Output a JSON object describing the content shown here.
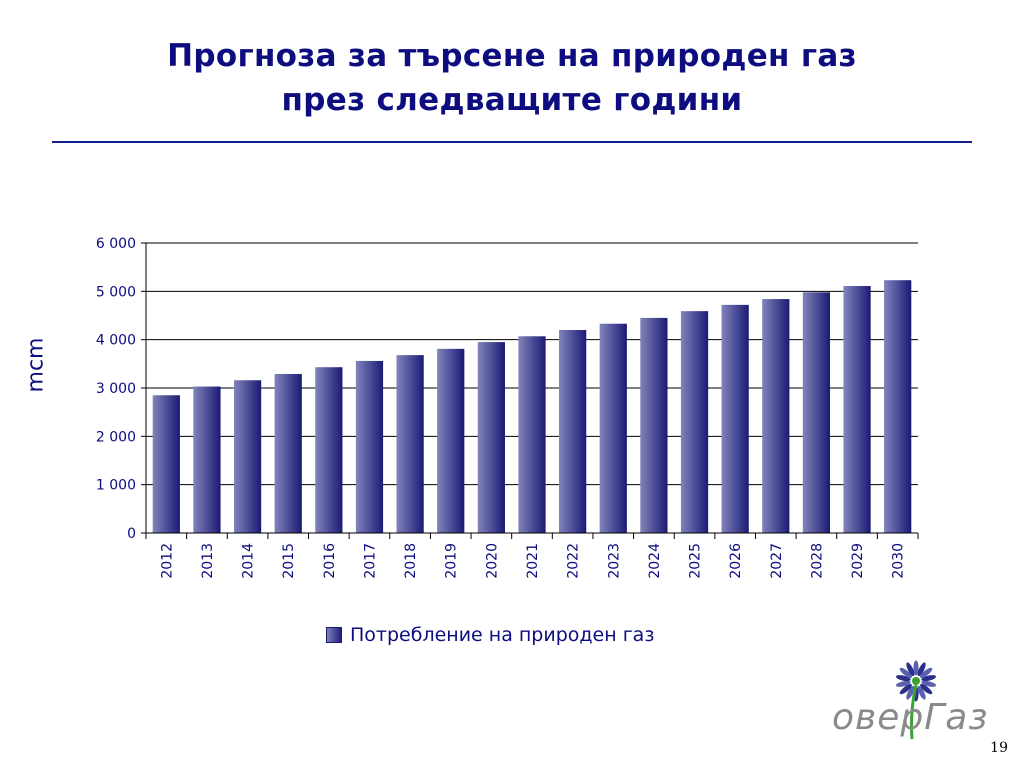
{
  "slide": {
    "title_line1": "Прогноза за търсене на природен газ",
    "title_line2": "през следващите години",
    "page_number": "19",
    "logo_text": "оверГаз"
  },
  "colors": {
    "title": "#0d0d80",
    "rule": "#0f1f8c",
    "bar_dark": "#1a1a75",
    "bar_light": "#8284bb",
    "logo_green": "#3aa335",
    "logo_blue": "#2a2f8a",
    "logo_gray": "#8a8a8a"
  },
  "chart_data": {
    "type": "bar",
    "categories": [
      "2012",
      "2013",
      "2014",
      "2015",
      "2016",
      "2017",
      "2018",
      "2019",
      "2020",
      "2021",
      "2022",
      "2023",
      "2024",
      "2025",
      "2026",
      "2027",
      "2028",
      "2029",
      "2030"
    ],
    "series": [
      {
        "name": "Потребление на природен газ",
        "values": [
          2850,
          3030,
          3160,
          3290,
          3430,
          3560,
          3680,
          3810,
          3950,
          4070,
          4200,
          4330,
          4450,
          4590,
          4720,
          4840,
          4980,
          5110,
          5230
        ]
      }
    ],
    "ylabel": "mcm",
    "ylim": [
      0,
      6000
    ],
    "yticks": [
      0,
      1000,
      2000,
      3000,
      4000,
      5000,
      6000
    ],
    "ytick_labels": [
      "0",
      "1 000",
      "2 000",
      "3 000",
      "4 000",
      "5 000",
      "6 000"
    ],
    "grid": true,
    "legend": "bottom"
  }
}
